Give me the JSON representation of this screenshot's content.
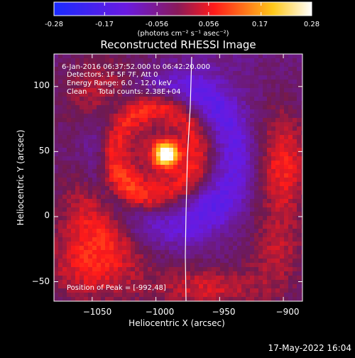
{
  "colorbar": {
    "ticks": [
      "-0.28",
      "-0.17",
      "-0.056",
      "0.056",
      "0.17",
      "0.28"
    ],
    "tick_values": [
      -0.28,
      -0.17,
      -0.056,
      0.056,
      0.17,
      0.28
    ],
    "range": [
      -0.28,
      0.28
    ],
    "units_label": "(photons cm⁻² s⁻¹ asec⁻²)",
    "colors": [
      "#1a2bff",
      "#7a1ad8",
      "#9b1a4a",
      "#ff1a1a",
      "#ffd21a",
      "#ffffff"
    ]
  },
  "chart_data": {
    "type": "heatmap",
    "title": "Reconstructed RHESSI Image",
    "xlabel": "Heliocentric X (arcsec)",
    "ylabel": "Heliocentric Y (arcsec)",
    "xlim": [
      -1080,
      -885
    ],
    "ylim": [
      -65,
      125
    ],
    "xticks": [
      -1050,
      -1000,
      -950,
      -900
    ],
    "xtick_labels": [
      "−1050",
      "−1000",
      "−950",
      "−900"
    ],
    "yticks": [
      -50,
      0,
      50,
      100
    ],
    "ytick_labels": [
      "−50",
      "0",
      "50",
      "100"
    ],
    "peak": {
      "x": -992,
      "y": 48
    },
    "info_lines": [
      "6-Jan-2016 06:37:52.000 to 06:42:20.000",
      "Detectors: 1F 5F 7F, Att 0",
      "Energy Range: 6.0 – 12.0 keV",
      "Clean     Total counts: 2.38E+04"
    ],
    "peak_label": "Position of Peak = [-992,48]",
    "limb_visible": true,
    "grid": false
  },
  "footer": {
    "timestamp": "17-May-2022 16:04"
  }
}
